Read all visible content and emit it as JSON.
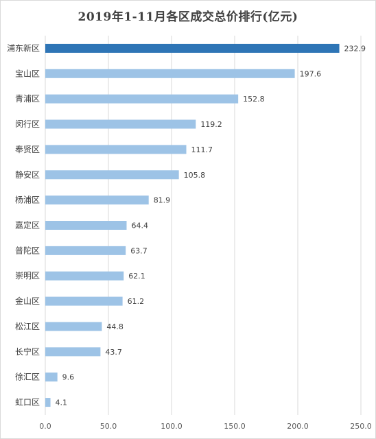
{
  "chart_data": {
    "type": "bar",
    "orientation": "horizontal",
    "title": "2019年1-11月各区成交总价排行(亿元)",
    "categories": [
      "浦东新区",
      "宝山区",
      "青浦区",
      "闵行区",
      "奉贤区",
      "静安区",
      "杨浦区",
      "嘉定区",
      "普陀区",
      "崇明区",
      "金山区",
      "松江区",
      "长宁区",
      "徐汇区",
      "虹口区"
    ],
    "values": [
      232.9,
      197.6,
      152.8,
      119.2,
      111.7,
      105.8,
      81.9,
      64.4,
      63.7,
      62.1,
      61.2,
      44.8,
      43.7,
      9.6,
      4.1
    ],
    "value_labels": [
      "232.9",
      "197.6",
      "152.8",
      "119.2",
      "111.7",
      "105.8",
      "81.9",
      "64.4",
      "63.7",
      "62.1",
      "61.2",
      "44.8",
      "43.7",
      "9.6",
      "4.1"
    ],
    "xlim": [
      0,
      250
    ],
    "xticks": [
      0,
      50,
      100,
      150,
      200,
      250
    ],
    "xtick_labels": [
      "0.0",
      "50.0",
      "100.0",
      "150.0",
      "200.0",
      "250.0"
    ],
    "vertical_grid": true,
    "colors": {
      "highlight": "#2e75b6",
      "bar": "#9dc3e6",
      "grid": "#d9d9d9"
    },
    "highlight_index": 0
  }
}
